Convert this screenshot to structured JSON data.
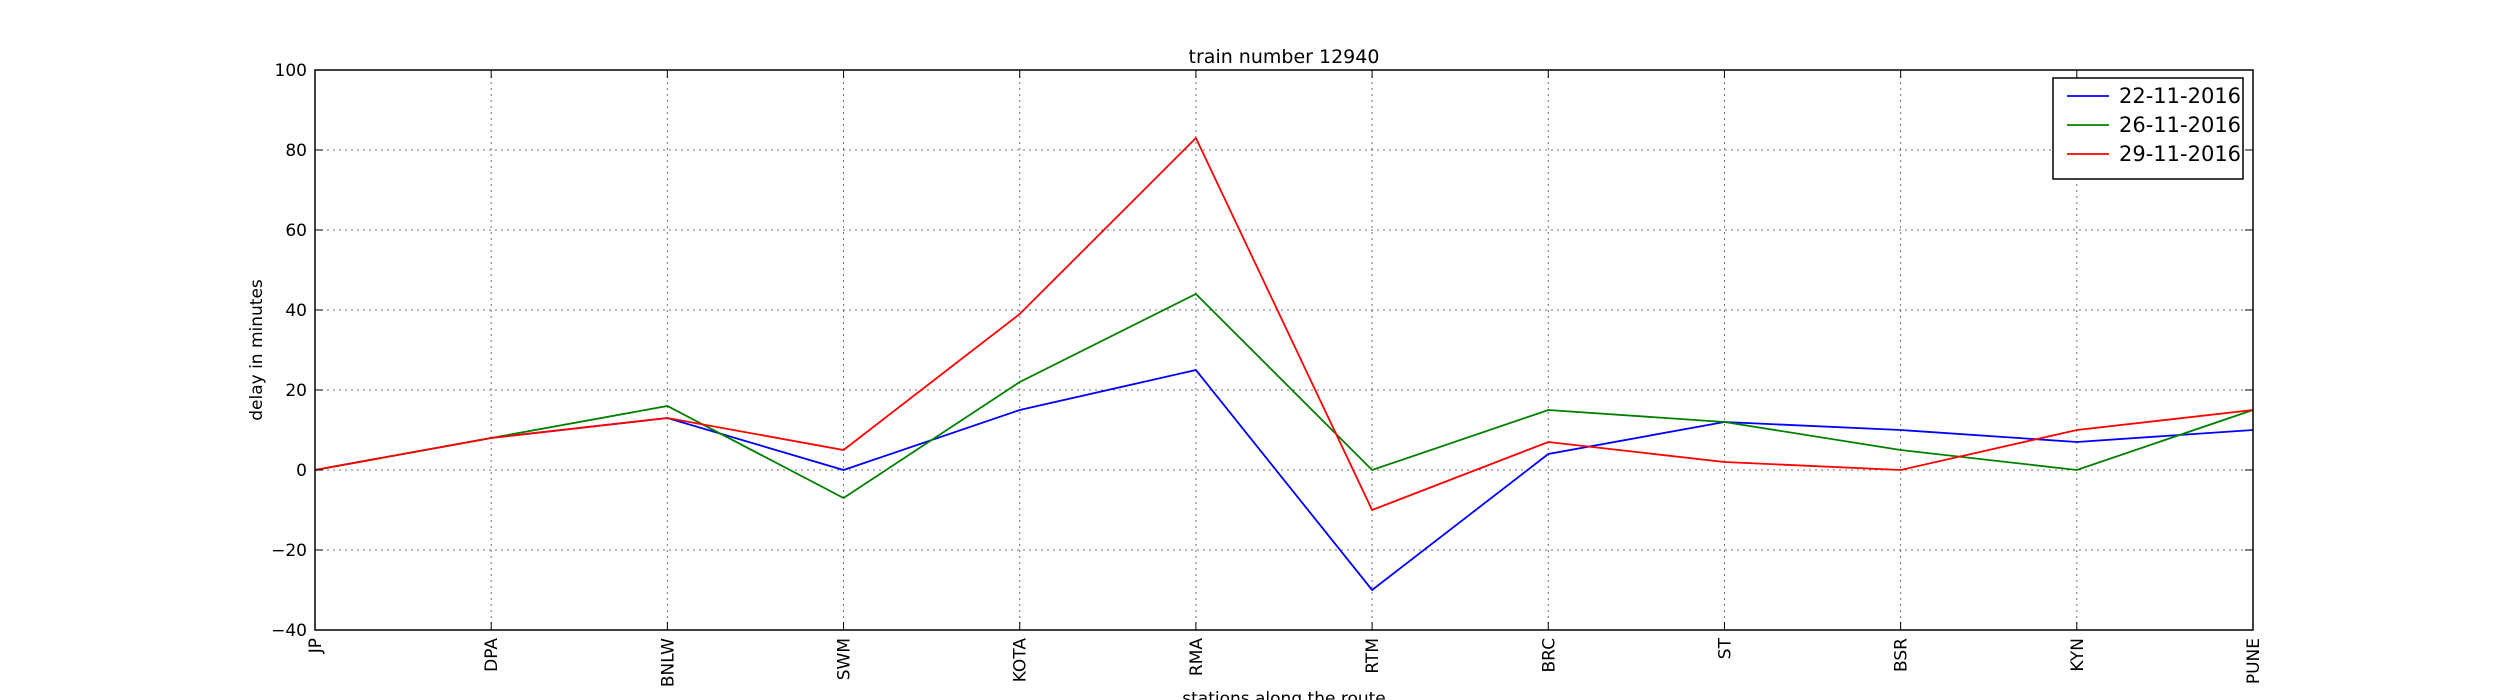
{
  "chart_data": {
    "type": "line",
    "title": "train number 12940",
    "xlabel": "stations along the route",
    "ylabel": "delay in minutes",
    "categories": [
      "JP",
      "DPA",
      "BNLW",
      "SWM",
      "KOTA",
      "RMA",
      "RTM",
      "BRC",
      "ST",
      "BSR",
      "KYN",
      "PUNE"
    ],
    "ylim": [
      -40,
      100
    ],
    "yticks": [
      -40,
      -20,
      0,
      20,
      40,
      60,
      80,
      100
    ],
    "ytick_labels": [
      "−40",
      "−20",
      "0",
      "20",
      "40",
      "60",
      "80",
      "100"
    ],
    "grid": true,
    "legend_position": "top-right",
    "series": [
      {
        "name": "22-11-2016",
        "color": "#0000ff",
        "values": [
          0,
          8,
          13,
          0,
          15,
          25,
          -30,
          4,
          12,
          10,
          7,
          10
        ]
      },
      {
        "name": "26-11-2016",
        "color": "#008000",
        "values": [
          0,
          8,
          16,
          -7,
          22,
          44,
          0,
          15,
          12,
          5,
          0,
          15
        ]
      },
      {
        "name": "29-11-2016",
        "color": "#ff0000",
        "values": [
          0,
          8,
          13,
          5,
          39,
          83,
          -10,
          7,
          2,
          0,
          10,
          15
        ]
      }
    ]
  }
}
